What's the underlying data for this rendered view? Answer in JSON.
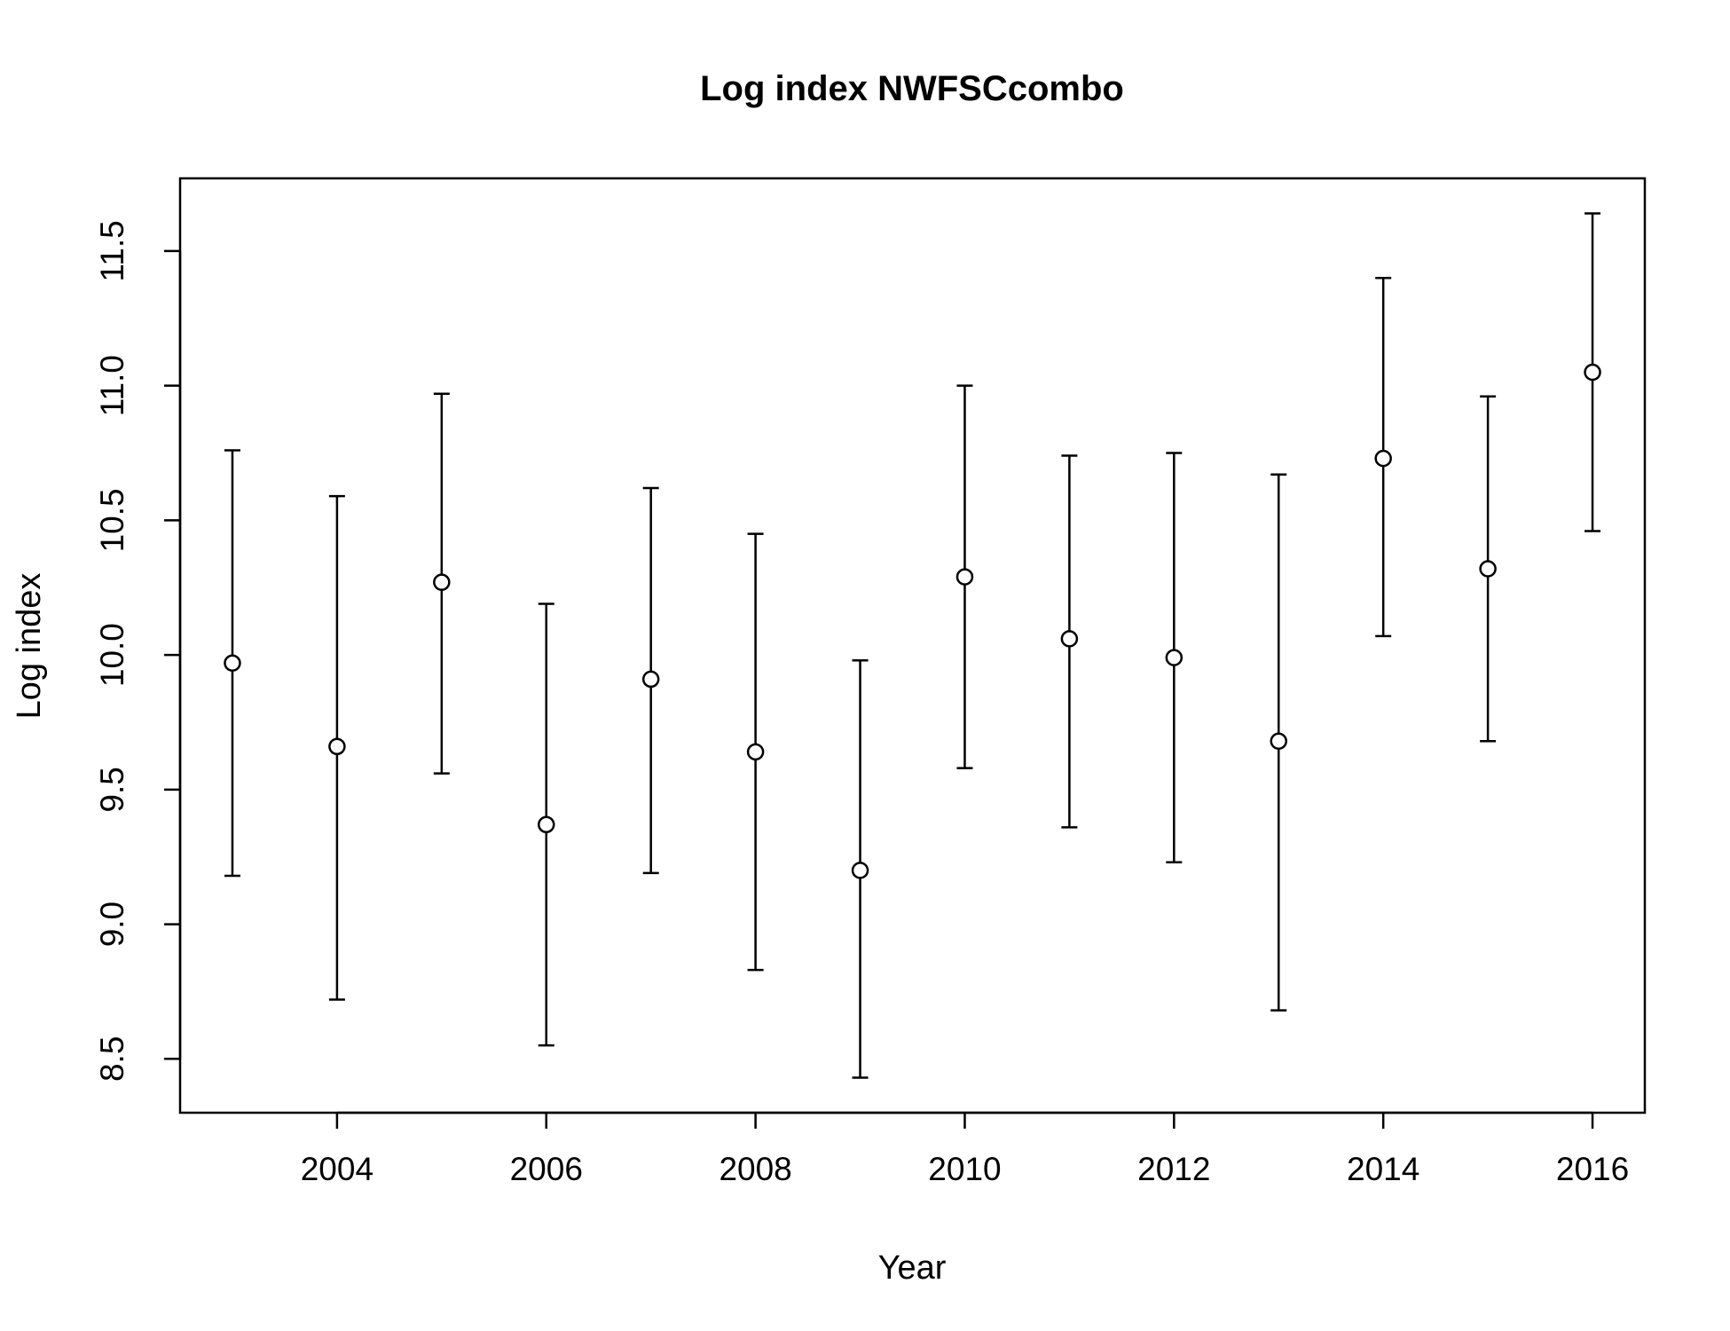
{
  "chart_data": {
    "type": "scatter",
    "title": "Log index NWFSCcombo",
    "xlabel": "Year",
    "ylabel": "Log index",
    "xlim": [
      2002.5,
      2016.5
    ],
    "ylim": [
      8.3,
      11.77
    ],
    "x_ticks": [
      2004,
      2006,
      2008,
      2010,
      2012,
      2014,
      2016
    ],
    "x_tick_labels": [
      "2004",
      "2006",
      "2008",
      "2010",
      "2012",
      "2014",
      "2016"
    ],
    "y_ticks": [
      8.5,
      9.0,
      9.5,
      10.0,
      10.5,
      11.0,
      11.5
    ],
    "y_tick_labels": [
      "8.5",
      "9.0",
      "9.5",
      "10.0",
      "10.5",
      "11.0",
      "11.5"
    ],
    "grid": false,
    "legend": "none",
    "series": [
      {
        "marker": "open-circle",
        "color": "#000000",
        "points": [
          {
            "x": 2003,
            "y": 9.97,
            "lower": 9.18,
            "upper": 10.76
          },
          {
            "x": 2004,
            "y": 9.66,
            "lower": 8.72,
            "upper": 10.59
          },
          {
            "x": 2005,
            "y": 10.27,
            "lower": 9.56,
            "upper": 10.97
          },
          {
            "x": 2006,
            "y": 9.37,
            "lower": 8.55,
            "upper": 10.19
          },
          {
            "x": 2007,
            "y": 9.91,
            "lower": 9.19,
            "upper": 10.62
          },
          {
            "x": 2008,
            "y": 9.64,
            "lower": 8.83,
            "upper": 10.45
          },
          {
            "x": 2009,
            "y": 9.2,
            "lower": 8.43,
            "upper": 9.98
          },
          {
            "x": 2010,
            "y": 10.29,
            "lower": 9.58,
            "upper": 11.0
          },
          {
            "x": 2011,
            "y": 10.06,
            "lower": 9.36,
            "upper": 10.74
          },
          {
            "x": 2012,
            "y": 9.99,
            "lower": 9.23,
            "upper": 10.75
          },
          {
            "x": 2013,
            "y": 9.68,
            "lower": 8.68,
            "upper": 10.67
          },
          {
            "x": 2014,
            "y": 10.73,
            "lower": 10.07,
            "upper": 11.4
          },
          {
            "x": 2015,
            "y": 10.32,
            "lower": 9.68,
            "upper": 10.96
          },
          {
            "x": 2016,
            "y": 11.05,
            "lower": 10.46,
            "upper": 11.64
          }
        ]
      }
    ]
  }
}
